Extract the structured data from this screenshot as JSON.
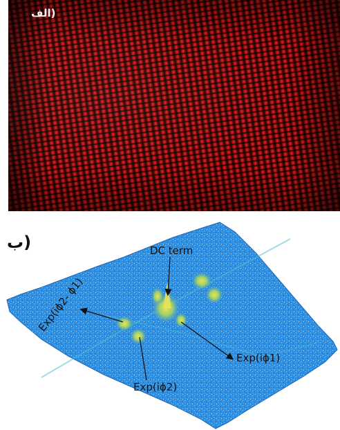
{
  "figure": {
    "panel_a": {
      "label": "(الف",
      "colors": {
        "fringe": "#e02020",
        "background": "#170303"
      }
    },
    "panel_b": {
      "label": "(ب",
      "annotations": {
        "dc_term": "DC term",
        "exp_phi2_minus_phi1": "Exp(iϕ2- ϕ1)",
        "exp_phi1": "Exp(iϕ1)",
        "exp_phi2": "Exp(iϕ2)"
      },
      "colors": {
        "surface": "#2f8fe0",
        "peak": "#d8d84a",
        "arrow": "#111111"
      }
    }
  }
}
